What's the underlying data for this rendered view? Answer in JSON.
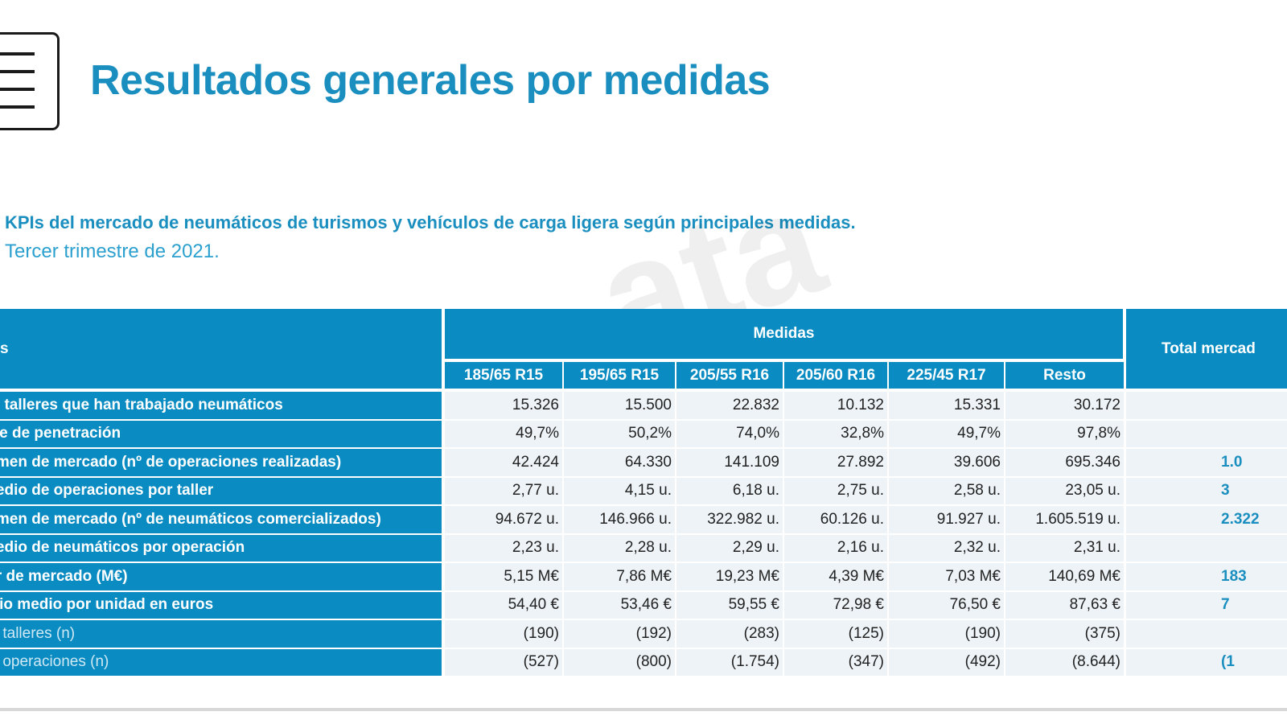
{
  "title": "Resultados generales por medidas",
  "subtitle": {
    "line1": "KPIs del mercado de neumáticos de turismos y vehículos de carga ligera según principales medidas.",
    "line2": "Tercer trimestre de 2021."
  },
  "watermark_text": "ata",
  "table": {
    "corner_label": "s",
    "group_header": "Medidas",
    "total_header": "Total mercad",
    "columns": [
      "185/65 R15",
      "195/65 R15",
      "205/55 R16",
      "205/60 R16",
      "225/45 R17",
      "Resto"
    ],
    "rows": [
      {
        "label": "de talleres que han trabajado neumáticos",
        "values": [
          "15.326",
          "15.500",
          "22.832",
          "10.132",
          "15.331",
          "30.172"
        ],
        "total": ""
      },
      {
        "label": "lice de penetración",
        "values": [
          "49,7%",
          "50,2%",
          "74,0%",
          "32,8%",
          "49,7%",
          "97,8%"
        ],
        "total": ""
      },
      {
        "label": "lumen de mercado (nº de operaciones realizadas)",
        "values": [
          "42.424",
          "64.330",
          "141.109",
          "27.892",
          "39.606",
          "695.346"
        ],
        "total": "1.0"
      },
      {
        "label": "medio de operaciones por taller",
        "values": [
          "2,77 u.",
          "4,15 u.",
          "6,18 u.",
          "2,75 u.",
          "2,58 u.",
          "23,05 u."
        ],
        "total": "3"
      },
      {
        "label": "lumen de mercado (nº de neumáticos comercializados)",
        "values": [
          "94.672 u.",
          "146.966 u.",
          "322.982 u.",
          "60.126 u.",
          "91.927 u.",
          "1.605.519 u."
        ],
        "total": "2.322"
      },
      {
        "label": "medio de neumáticos por operación",
        "values": [
          "2,23 u.",
          "2,28 u.",
          "2,29 u.",
          "2,16 u.",
          "2,32 u.",
          "2,31 u."
        ],
        "total": ""
      },
      {
        "label": "lor de mercado (M€)",
        "values": [
          "5,15 M€",
          "7,86 M€",
          "19,23 M€",
          "4,39 M€",
          "7,03 M€",
          "140,69 M€"
        ],
        "total": "183"
      },
      {
        "label": "ecio medio por unidad en euros",
        "values": [
          "54,40 €",
          "53,46 €",
          "59,55 €",
          "72,98 €",
          "76,50 €",
          "87,63 €"
        ],
        "total": "7"
      },
      {
        "label": "se talleres (n)",
        "values": [
          "(190)",
          "(192)",
          "(283)",
          "(125)",
          "(190)",
          "(375)"
        ],
        "total": "",
        "light": true
      },
      {
        "label": "se operaciones (n)",
        "values": [
          "(527)",
          "(800)",
          "(1.754)",
          "(347)",
          "(492)",
          "(8.644)"
        ],
        "total": "(1",
        "light": true
      }
    ]
  },
  "colors": {
    "header_bg": "#0a8cc2",
    "title": "#1a8fbf",
    "cell_bg": "#eef3f7"
  }
}
